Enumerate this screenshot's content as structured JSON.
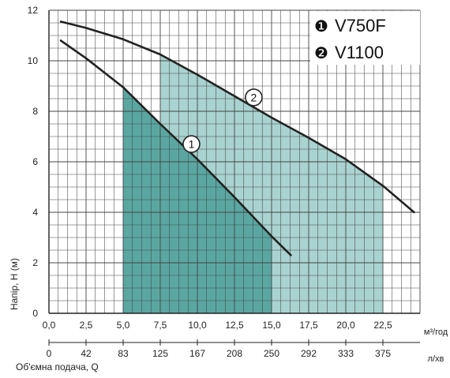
{
  "chart_data": {
    "type": "line",
    "ylabel": "Напір, Н (м)",
    "xlabel": "Об'ємна подача, Q",
    "x_unit_top": "м³/год",
    "x_unit_bottom": "л/хв",
    "xlim": [
      0,
      25
    ],
    "ylim": [
      0,
      12
    ],
    "x_ticks": [
      "0,0",
      "2,5",
      "5,0",
      "7,5",
      "10,0",
      "12,5",
      "15,0",
      "17,5",
      "20,0",
      "22,5"
    ],
    "x_tick_values": [
      0,
      2.5,
      5,
      7.5,
      10,
      12.5,
      15,
      17.5,
      20,
      22.5
    ],
    "x_ticks_lpm": [
      "0",
      "42",
      "83",
      "125",
      "167",
      "208",
      "250",
      "292",
      "333",
      "375"
    ],
    "y_ticks": [
      "0",
      "2",
      "4",
      "6",
      "8",
      "10",
      "12"
    ],
    "y_tick_values": [
      0,
      2,
      4,
      6,
      8,
      10,
      12
    ],
    "grid": true,
    "legend_position": "top-right",
    "series": [
      {
        "name": "V750F",
        "marker": "1",
        "legend_badge": "❶",
        "color": "#222222",
        "operating_range_x": [
          5,
          15
        ],
        "fill_color": "#5aa7a2",
        "points": [
          [
            0.8,
            10.8
          ],
          [
            2.5,
            10.1
          ],
          [
            5,
            8.95
          ],
          [
            7.5,
            7.5
          ],
          [
            10,
            6.1
          ],
          [
            12.5,
            4.6
          ],
          [
            15,
            3.05
          ],
          [
            16.3,
            2.3
          ]
        ]
      },
      {
        "name": "V1100",
        "marker": "2",
        "legend_badge": "❷",
        "color": "#222222",
        "operating_range_x": [
          7.5,
          22.5
        ],
        "fill_color": "#a9d3d0",
        "points": [
          [
            0.8,
            11.55
          ],
          [
            2.5,
            11.3
          ],
          [
            5,
            10.85
          ],
          [
            7.5,
            10.25
          ],
          [
            10,
            9.45
          ],
          [
            12.5,
            8.6
          ],
          [
            15,
            7.75
          ],
          [
            17.5,
            6.95
          ],
          [
            20,
            6.1
          ],
          [
            22.5,
            5.05
          ],
          [
            24.6,
            4.0
          ]
        ]
      }
    ],
    "marker_positions": [
      {
        "label": "1",
        "series": 0,
        "x": 9.6,
        "y": 6.7
      },
      {
        "label": "2",
        "series": 1,
        "x": 13.8,
        "y": 8.55
      }
    ]
  }
}
